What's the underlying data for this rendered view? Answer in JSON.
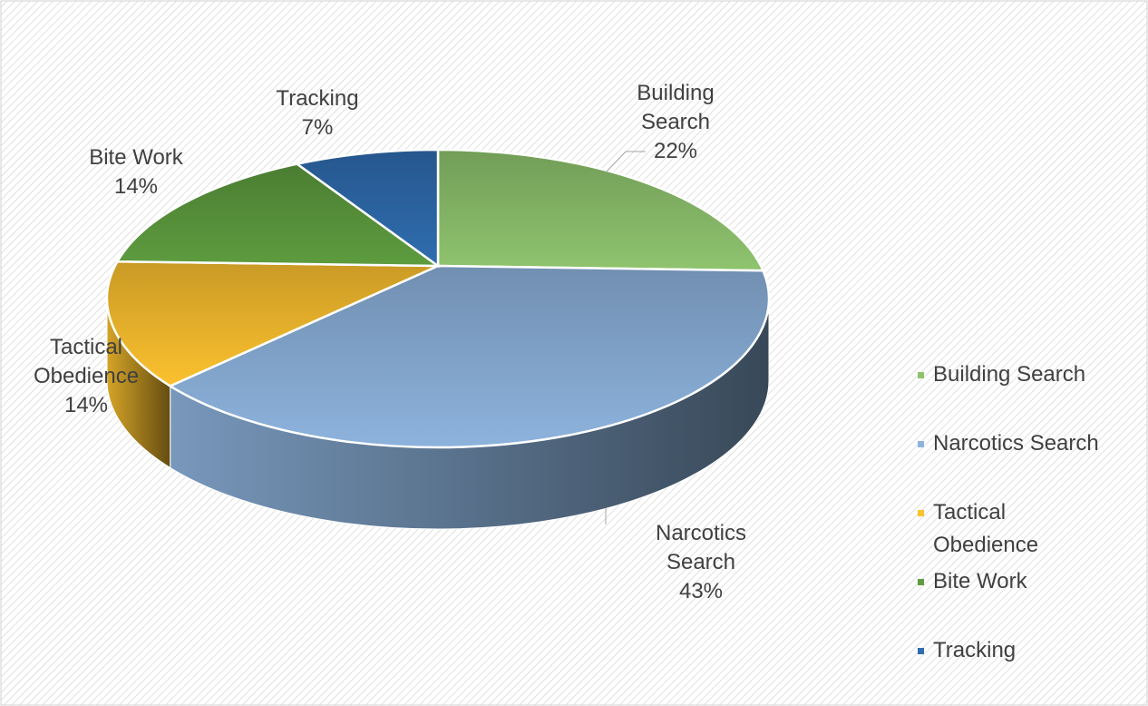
{
  "chart_data": {
    "type": "pie3d",
    "categories": [
      "Building Search",
      "Narcotics Search",
      "Tactical Obedience",
      "Bite Work",
      "Tracking"
    ],
    "values": [
      22,
      43,
      14,
      14,
      7
    ],
    "value_labels": [
      "22%",
      "43%",
      "14%",
      "14%",
      "7%"
    ],
    "colors": [
      "#8fc46e",
      "#8db3dd",
      "#fbc12e",
      "#5e9c3f",
      "#2f6db0"
    ],
    "legend": "right"
  }
}
